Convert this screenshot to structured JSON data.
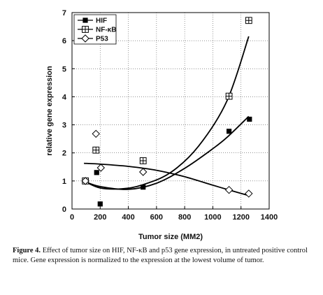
{
  "chart_data": {
    "type": "scatter",
    "xlabel": "Tumor size (MM2)",
    "ylabel": "relative gene expression",
    "xlim": [
      0,
      1400
    ],
    "ylim": [
      0,
      7
    ],
    "xticks": [
      0,
      200,
      400,
      600,
      800,
      1000,
      1200,
      1400
    ],
    "yticks": [
      0,
      1,
      2,
      3,
      4,
      5,
      6,
      7
    ],
    "grid": true,
    "legend_position": "top-left",
    "series": [
      {
        "name": "HIF",
        "marker": "filled-square",
        "points": [
          [
            95,
            1.0
          ],
          [
            175,
            1.3
          ],
          [
            200,
            0.18
          ],
          [
            505,
            0.78
          ],
          [
            1115,
            2.77
          ],
          [
            1260,
            3.2
          ]
        ],
        "trend": [
          [
            95,
            0.97
          ],
          [
            200,
            0.8
          ],
          [
            400,
            0.7
          ],
          [
            600,
            0.92
          ],
          [
            800,
            1.45
          ],
          [
            1000,
            2.15
          ],
          [
            1100,
            2.55
          ],
          [
            1255,
            3.3
          ]
        ]
      },
      {
        "name": "NF-κB",
        "marker": "boxed-plus",
        "points": [
          [
            95,
            1.0
          ],
          [
            170,
            2.1
          ],
          [
            505,
            1.72
          ],
          [
            1115,
            4.02
          ],
          [
            1255,
            6.72
          ]
        ],
        "trend": [
          [
            95,
            0.97
          ],
          [
            200,
            0.75
          ],
          [
            350,
            0.72
          ],
          [
            500,
            0.86
          ],
          [
            700,
            1.3
          ],
          [
            900,
            2.25
          ],
          [
            1100,
            3.85
          ],
          [
            1255,
            6.15
          ]
        ]
      },
      {
        "name": "P53",
        "marker": "open-diamond",
        "points": [
          [
            95,
            1.0
          ],
          [
            170,
            2.68
          ],
          [
            205,
            1.47
          ],
          [
            505,
            1.32
          ],
          [
            1115,
            0.68
          ],
          [
            1255,
            0.55
          ]
        ],
        "trend": [
          [
            85,
            1.63
          ],
          [
            200,
            1.6
          ],
          [
            400,
            1.52
          ],
          [
            600,
            1.38
          ],
          [
            800,
            1.15
          ],
          [
            1000,
            0.85
          ],
          [
            1100,
            0.7
          ],
          [
            1255,
            0.48
          ]
        ]
      }
    ]
  },
  "caption": {
    "label": "Figure 4.",
    "text": " Effect of tumor size on HIF, NF-κB and p53 gene expression, in untreated positive control mice. Gene expression is normalized to the expression at the lowest volume of tumor."
  }
}
